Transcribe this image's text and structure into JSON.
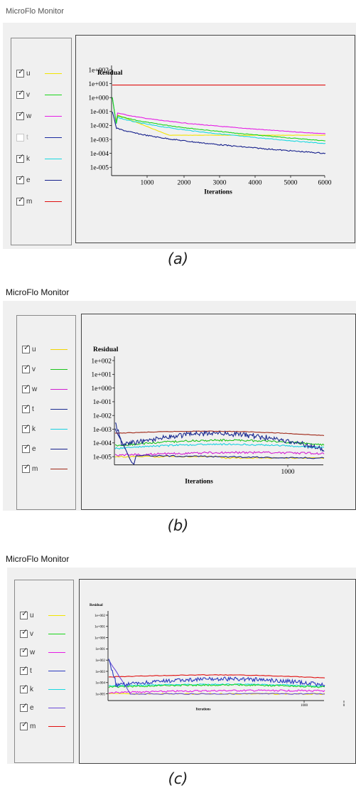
{
  "panels": [
    {
      "id": "a",
      "title": "MicroFlo Monitor",
      "caption": "(a)",
      "legend": [
        {
          "label": "u",
          "checked": true,
          "color": "#f2e400"
        },
        {
          "label": "v",
          "checked": true,
          "color": "#1bd61b"
        },
        {
          "label": "w",
          "checked": true,
          "color": "#e51de5"
        },
        {
          "label": "t",
          "checked": false,
          "color": "#1a2aa0"
        },
        {
          "label": "k",
          "checked": true,
          "color": "#18d8e0"
        },
        {
          "label": "e",
          "checked": true,
          "color": "#16208c"
        },
        {
          "label": "m",
          "checked": true,
          "color": "#e01010"
        }
      ],
      "plot": {
        "ylabel": "Residual",
        "xlabel": "Iterations",
        "ytick_labels": [
          "1e+002",
          "1e+001",
          "1e+000",
          "1e-001",
          "1e-002",
          "1e-003",
          "1e-004",
          "1e-005"
        ],
        "xtick_labels": [
          "1000",
          "2000",
          "3000",
          "4000",
          "5000",
          "6000"
        ]
      }
    },
    {
      "id": "b",
      "title": "MicroFlo Monitor",
      "caption": "(b)",
      "legend": [
        {
          "label": "u",
          "checked": true,
          "color": "#f2d400"
        },
        {
          "label": "v",
          "checked": true,
          "color": "#1bc41b"
        },
        {
          "label": "w",
          "checked": true,
          "color": "#d21dd2"
        },
        {
          "label": "t",
          "checked": true,
          "color": "#1a2a90"
        },
        {
          "label": "k",
          "checked": true,
          "color": "#18d0e0"
        },
        {
          "label": "e",
          "checked": true,
          "color": "#16208c"
        },
        {
          "label": "m",
          "checked": true,
          "color": "#a02818"
        }
      ],
      "plot": {
        "ylabel": "Residual",
        "xlabel": "Iterations",
        "ytick_labels": [
          "1e+002",
          "1e+001",
          "1e+000",
          "1e-001",
          "1e-002",
          "1e-003",
          "1e-004",
          "1e-005"
        ],
        "xtick_labels": [
          "1000"
        ]
      }
    },
    {
      "id": "c",
      "title": "MicroFlo Monitor",
      "caption": "(c)",
      "legend": [
        {
          "label": "u",
          "checked": true,
          "color": "#f2e400"
        },
        {
          "label": "v",
          "checked": true,
          "color": "#1bd61b"
        },
        {
          "label": "w",
          "checked": true,
          "color": "#e51de5"
        },
        {
          "label": "t",
          "checked": true,
          "color": "#2a3ac0"
        },
        {
          "label": "k",
          "checked": true,
          "color": "#18d8e0"
        },
        {
          "label": "e",
          "checked": true,
          "color": "#6a4ad8"
        },
        {
          "label": "m",
          "checked": true,
          "color": "#e01010"
        }
      ],
      "plot": {
        "ylabel": "Residual",
        "xlabel": "Iterations",
        "ytick_labels": [
          "1e+002",
          "1e+001",
          "1e+000",
          "1e-001",
          "1e-002",
          "1e-003",
          "1e-004",
          "1e-005"
        ],
        "xtick_labels": [
          "1000",
          "0"
        ]
      }
    }
  ]
}
